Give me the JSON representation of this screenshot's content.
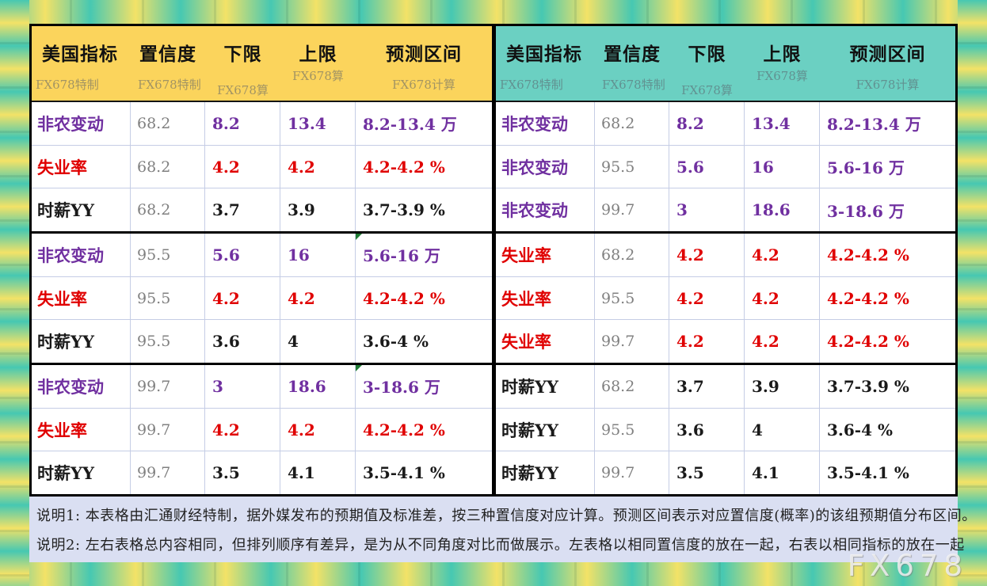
{
  "chart_data": [
    {
      "type": "table",
      "grouping": "same confidence level grouped together (left table)",
      "columns": [
        "美国指标",
        "置信度",
        "下限",
        "上限",
        "预测区间"
      ],
      "watermarks": [
        "FX678特制",
        "FX678特制",
        "FX678算",
        "FX678算",
        "FX678计算"
      ],
      "rows": [
        [
          "非农变动",
          "68.2",
          "8.2",
          "13.4",
          "8.2-13.4 万"
        ],
        [
          "失业率",
          "68.2",
          "4.2",
          "4.2",
          "4.2-4.2 %"
        ],
        [
          "时薪YY",
          "68.2",
          "3.7",
          "3.9",
          "3.7-3.9 %"
        ],
        [
          "非农变动",
          "95.5",
          "5.6",
          "16",
          "5.6-16 万"
        ],
        [
          "失业率",
          "95.5",
          "4.2",
          "4.2",
          "4.2-4.2 %"
        ],
        [
          "时薪YY",
          "95.5",
          "3.6",
          "4",
          "3.6-4 %"
        ],
        [
          "非农变动",
          "99.7",
          "3",
          "18.6",
          "3-18.6 万"
        ],
        [
          "失业率",
          "99.7",
          "4.2",
          "4.2",
          "4.2-4.2 %"
        ],
        [
          "时薪YY",
          "99.7",
          "3.5",
          "4.1",
          "3.5-4.1 %"
        ]
      ]
    },
    {
      "type": "table",
      "grouping": "same indicator grouped together (right table)",
      "columns": [
        "美国指标",
        "置信度",
        "下限",
        "上限",
        "预测区间"
      ],
      "watermarks": [
        "FX678特制",
        "FX678特制",
        "FX678算",
        "FX678算",
        "FX678计算"
      ],
      "rows": [
        [
          "非农变动",
          "68.2",
          "8.2",
          "13.4",
          "8.2-13.4 万"
        ],
        [
          "非农变动",
          "95.5",
          "5.6",
          "16",
          "5.6-16 万"
        ],
        [
          "非农变动",
          "99.7",
          "3",
          "18.6",
          "3-18.6 万"
        ],
        [
          "失业率",
          "68.2",
          "4.2",
          "4.2",
          "4.2-4.2 %"
        ],
        [
          "失业率",
          "95.5",
          "4.2",
          "4.2",
          "4.2-4.2 %"
        ],
        [
          "失业率",
          "99.7",
          "4.2",
          "4.2",
          "4.2-4.2 %"
        ],
        [
          "时薪YY",
          "68.2",
          "3.7",
          "3.9",
          "3.7-3.9 %"
        ],
        [
          "时薪YY",
          "95.5",
          "3.6",
          "4",
          "3.6-4 %"
        ],
        [
          "时薪YY",
          "99.7",
          "3.5",
          "4.1",
          "3.5-4.1 %"
        ]
      ]
    }
  ],
  "notes": {
    "line1": "说明1: 本表格由汇通财经特制，据外媒发布的预期值及标准差，按三种置信度对应计算。预测区间表示对应置信度(概率)的该组预期值分布区间。",
    "line2": "说明2: 左右表格总内容相同，但排列顺序有差异，是为从不同角度对比而做展示。左表格以相同置信度的放在一起，右表以相同指标的放在一起"
  },
  "brand_watermark": "FX678",
  "colors": {
    "left_header_bg": "#FBD45C",
    "right_header_bg": "#6BD0C2",
    "nonfarm_purple": "#7030A0",
    "unemployment_red": "#E00000",
    "hourly_wage_black": "#1A1A1A",
    "confidence_gray": "#808080",
    "notes_panel_bg": "#DADFF2",
    "frame_teal": "#46C8B2",
    "frame_yellow": "#F3E267",
    "cell_marker_green": "#1E7B33"
  }
}
